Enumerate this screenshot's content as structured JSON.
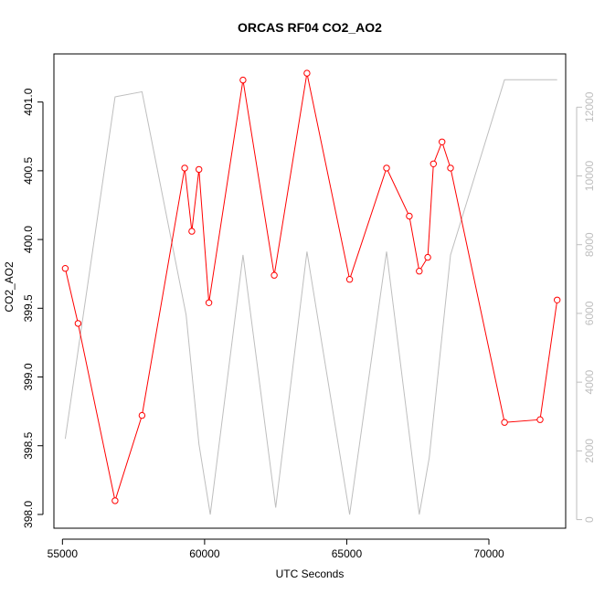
{
  "chart_data": {
    "type": "line",
    "title": "ORCAS RF04 CO2_AO2",
    "xlabel": "UTC Seconds",
    "ylabel": "CO2_AO2",
    "y2label": "",
    "xlim": [
      54700,
      72700
    ],
    "ylim": [
      397.9,
      401.35
    ],
    "y2lim": [
      -250,
      13550
    ],
    "x_ticks": [
      55000,
      60000,
      65000,
      70000
    ],
    "y_ticks": [
      398.0,
      398.5,
      399.0,
      399.5,
      400.0,
      400.5,
      401.0
    ],
    "y2_ticks": [
      0,
      2000,
      4000,
      6000,
      8000,
      10000,
      12000
    ],
    "grid": false,
    "legend": "none",
    "series": [
      {
        "axis": "left",
        "color": "#ff0000",
        "markers": "open-circle",
        "x": [
          55100,
          55550,
          56850,
          57800,
          59300,
          59550,
          59800,
          60150,
          61350,
          62450,
          63600,
          65100,
          66400,
          67200,
          67550,
          67850,
          68050,
          68350,
          68650,
          70550,
          71800,
          72400
        ],
        "y": [
          399.79,
          399.39,
          398.1,
          398.72,
          400.52,
          400.06,
          400.51,
          399.54,
          401.16,
          399.74,
          401.21,
          399.71,
          400.52,
          400.17,
          399.77,
          399.87,
          400.55,
          400.71,
          400.52,
          398.67,
          398.69,
          399.56
        ]
      },
      {
        "axis": "right",
        "color": "#bebebe",
        "markers": "none",
        "x": [
          55100,
          56850,
          57800,
          59350,
          59800,
          60200,
          61350,
          62500,
          63600,
          65100,
          66400,
          67550,
          67900,
          68650,
          70550,
          72400
        ],
        "y": [
          2350,
          12300,
          12450,
          5950,
          2200,
          150,
          7700,
          350,
          7800,
          150,
          7800,
          150,
          1800,
          7700,
          12800,
          12800
        ]
      }
    ]
  }
}
